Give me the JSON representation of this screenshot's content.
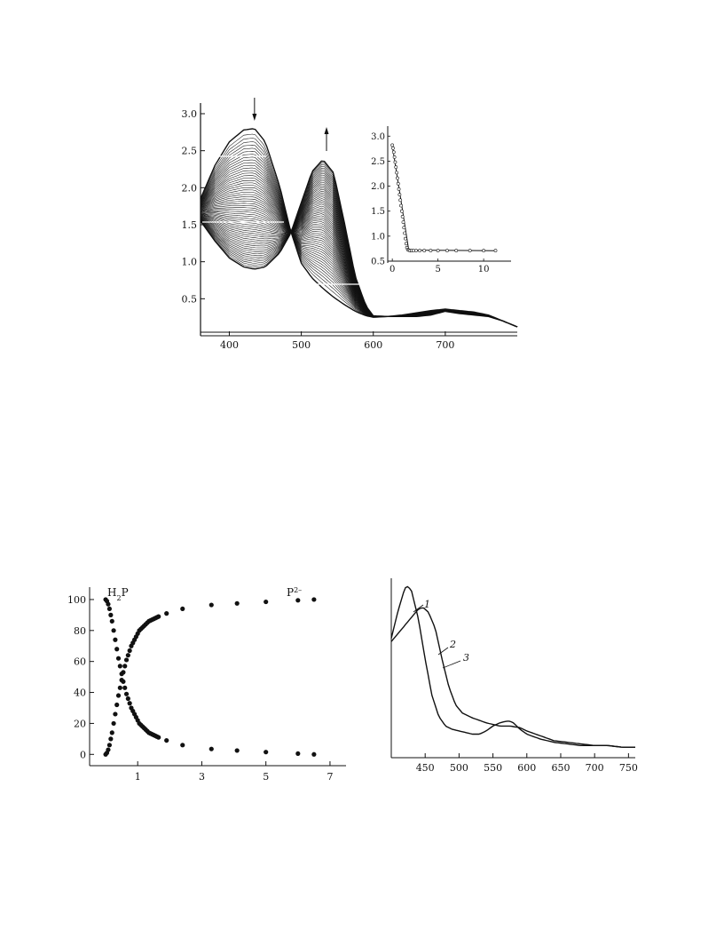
{
  "chart_data": [
    {
      "type": "line",
      "id": "titration-spectra",
      "xlim": [
        360,
        800
      ],
      "ylim": [
        0,
        3.0
      ],
      "xticks": [
        400,
        500,
        600,
        700
      ],
      "yticks": [
        0.5,
        1.0,
        1.5,
        2.0,
        2.5,
        3.0
      ],
      "xtick_labels": [
        "400",
        "500",
        "600",
        "700"
      ],
      "ytick_labels": [
        "0.5",
        "1.0",
        "1.5",
        "2.0",
        "2.5",
        "3.0"
      ],
      "curve_count": 60,
      "first_curve": {
        "x": [
          360,
          380,
          400,
          420,
          435,
          450,
          470,
          485,
          500,
          515,
          530,
          545,
          560,
          575,
          590,
          600,
          620,
          640,
          660,
          680,
          700,
          720,
          740,
          760,
          780,
          800
        ],
        "y": [
          1.85,
          2.3,
          2.62,
          2.78,
          2.8,
          2.62,
          2.02,
          1.42,
          0.98,
          0.78,
          0.64,
          0.52,
          0.42,
          0.33,
          0.27,
          0.25,
          0.26,
          0.26,
          0.26,
          0.28,
          0.33,
          0.3,
          0.28,
          0.26,
          0.2,
          0.12
        ]
      },
      "last_curve": {
        "x": [
          360,
          380,
          400,
          420,
          435,
          450,
          470,
          485,
          500,
          515,
          530,
          545,
          560,
          575,
          590,
          600,
          620,
          640,
          660,
          680,
          700,
          720,
          740,
          760,
          780,
          800
        ],
        "y": [
          1.55,
          1.28,
          1.05,
          0.93,
          0.9,
          0.93,
          1.12,
          1.38,
          1.8,
          2.22,
          2.38,
          2.2,
          1.52,
          0.8,
          0.4,
          0.27,
          0.26,
          0.28,
          0.31,
          0.34,
          0.36,
          0.34,
          0.32,
          0.28,
          0.2,
          0.12
        ]
      },
      "arrows": [
        {
          "x": 435,
          "direction": "down"
        },
        {
          "x": 535,
          "direction": "up"
        }
      ],
      "inset": {
        "type": "scatter",
        "xlim": [
          -0.5,
          13
        ],
        "ylim": [
          0.5,
          3.2
        ],
        "xticks": [
          0,
          5,
          10
        ],
        "yticks": [
          0.5,
          1.0,
          1.5,
          2.0,
          2.5,
          3.0
        ],
        "xtick_labels": [
          "0",
          "5",
          "10"
        ],
        "ytick_labels": [
          "0.5",
          "1.0",
          "1.5",
          "2.0",
          "2.5",
          "3.0"
        ],
        "x": [
          0,
          0.08,
          0.16,
          0.24,
          0.32,
          0.4,
          0.48,
          0.56,
          0.64,
          0.72,
          0.8,
          0.88,
          0.96,
          1.04,
          1.12,
          1.2,
          1.28,
          1.36,
          1.44,
          1.52,
          1.6,
          1.7,
          1.8,
          1.95,
          2.1,
          2.3,
          2.6,
          3.0,
          3.5,
          4.2,
          5.0,
          6.0,
          7.0,
          8.5,
          10.0,
          11.3
        ],
        "y": [
          2.82,
          2.76,
          2.68,
          2.58,
          2.48,
          2.38,
          2.27,
          2.16,
          2.05,
          1.94,
          1.83,
          1.72,
          1.61,
          1.5,
          1.39,
          1.28,
          1.17,
          1.06,
          0.95,
          0.85,
          0.77,
          0.73,
          0.72,
          0.71,
          0.71,
          0.71,
          0.71,
          0.71,
          0.71,
          0.71,
          0.71,
          0.71,
          0.71,
          0.71,
          0.71,
          0.71
        ],
        "fit_line": {
          "x": [
            0,
            1.8,
            11.3
          ],
          "y": [
            2.82,
            0.72,
            0.71
          ]
        }
      }
    },
    {
      "type": "scatter",
      "id": "species-distribution",
      "xlim": [
        -0.5,
        7.5
      ],
      "ylim": [
        -5,
        108
      ],
      "xticks": [
        1,
        3,
        5,
        7
      ],
      "yticks": [
        0,
        20,
        40,
        60,
        80,
        100
      ],
      "xtick_labels": [
        "1",
        "3",
        "5",
        "7"
      ],
      "ytick_labels": [
        "0",
        "20",
        "40",
        "60",
        "80",
        "100"
      ],
      "series": [
        {
          "name": "H₂P",
          "x": [
            0,
            0.04,
            0.08,
            0.12,
            0.16,
            0.2,
            0.25,
            0.3,
            0.35,
            0.4,
            0.45,
            0.5,
            0.55,
            0.6,
            0.65,
            0.7,
            0.75,
            0.8,
            0.85,
            0.9,
            0.95,
            1.0,
            1.05,
            1.1,
            1.15,
            1.2,
            1.25,
            1.3,
            1.35,
            1.4,
            1.45,
            1.5,
            1.55,
            1.6,
            1.65,
            1.9,
            2.4,
            3.3,
            4.1,
            5.0,
            6.0,
            6.5
          ],
          "y": [
            100,
            99,
            97,
            94,
            90,
            86,
            80,
            74,
            68,
            62,
            57,
            52,
            47,
            43,
            39,
            36,
            33,
            30,
            28,
            26,
            24,
            22,
            20,
            19,
            18,
            17,
            16,
            15,
            14,
            13.5,
            13,
            12.5,
            12,
            11.5,
            11,
            9,
            6,
            3.5,
            2.5,
            1.5,
            0.5,
            0
          ]
        },
        {
          "name": "P²⁻",
          "x": [
            0,
            0.04,
            0.08,
            0.12,
            0.16,
            0.2,
            0.25,
            0.3,
            0.35,
            0.4,
            0.45,
            0.5,
            0.55,
            0.6,
            0.65,
            0.7,
            0.75,
            0.8,
            0.85,
            0.9,
            0.95,
            1.0,
            1.05,
            1.1,
            1.15,
            1.2,
            1.25,
            1.3,
            1.35,
            1.4,
            1.45,
            1.5,
            1.55,
            1.6,
            1.65,
            1.9,
            2.4,
            3.3,
            4.1,
            5.0,
            6.0,
            6.5
          ],
          "y": [
            0,
            1,
            3,
            6,
            10,
            14,
            20,
            26,
            32,
            38,
            43,
            48,
            53,
            57,
            61,
            64,
            67,
            70,
            72,
            74,
            76,
            78,
            80,
            81,
            82,
            83,
            84,
            85,
            86,
            86.5,
            87,
            87.5,
            88,
            88.5,
            89,
            91,
            94,
            96.5,
            97.5,
            98.5,
            99.5,
            100
          ]
        }
      ],
      "annotations": [
        {
          "text": "H",
          "sub": "2",
          "tail": "P",
          "series": "H₂P"
        },
        {
          "text": "P",
          "sup": "2–",
          "series": "P²⁻"
        }
      ]
    },
    {
      "type": "line",
      "id": "absorption-spectra",
      "xlim": [
        400,
        760
      ],
      "ylim": [
        0,
        1.05
      ],
      "xticks": [
        450,
        500,
        550,
        600,
        650,
        700,
        750
      ],
      "xtick_labels": [
        "450",
        "500",
        "550",
        "600",
        "650",
        "700",
        "750"
      ],
      "series": [
        {
          "name": "1",
          "x": [
            400,
            410,
            420,
            425,
            430,
            440,
            450,
            460,
            470,
            480,
            490,
            500,
            510,
            520,
            530,
            540,
            550,
            560,
            570,
            575,
            580,
            590,
            600,
            620,
            640,
            660,
            680,
            700,
            720,
            740,
            760
          ],
          "y": [
            0.68,
            0.85,
            0.99,
            1.0,
            0.97,
            0.8,
            0.55,
            0.33,
            0.2,
            0.14,
            0.12,
            0.11,
            0.1,
            0.09,
            0.09,
            0.11,
            0.14,
            0.16,
            0.17,
            0.17,
            0.16,
            0.12,
            0.09,
            0.06,
            0.04,
            0.03,
            0.02,
            0.02,
            0.02,
            0.01,
            0.01
          ]
        },
        {
          "name": "3",
          "x": [
            400,
            410,
            420,
            430,
            440,
            447,
            455,
            465,
            475,
            485,
            495,
            505,
            520,
            540,
            560,
            575,
            590,
            600,
            620,
            640,
            660,
            680,
            700,
            720,
            740,
            760
          ],
          "y": [
            0.66,
            0.71,
            0.76,
            0.81,
            0.86,
            0.87,
            0.84,
            0.74,
            0.55,
            0.38,
            0.27,
            0.22,
            0.19,
            0.16,
            0.14,
            0.14,
            0.13,
            0.11,
            0.08,
            0.05,
            0.04,
            0.03,
            0.02,
            0.02,
            0.01,
            0.01
          ]
        }
      ],
      "curve_labels": [
        "1",
        "2",
        "3"
      ]
    }
  ]
}
